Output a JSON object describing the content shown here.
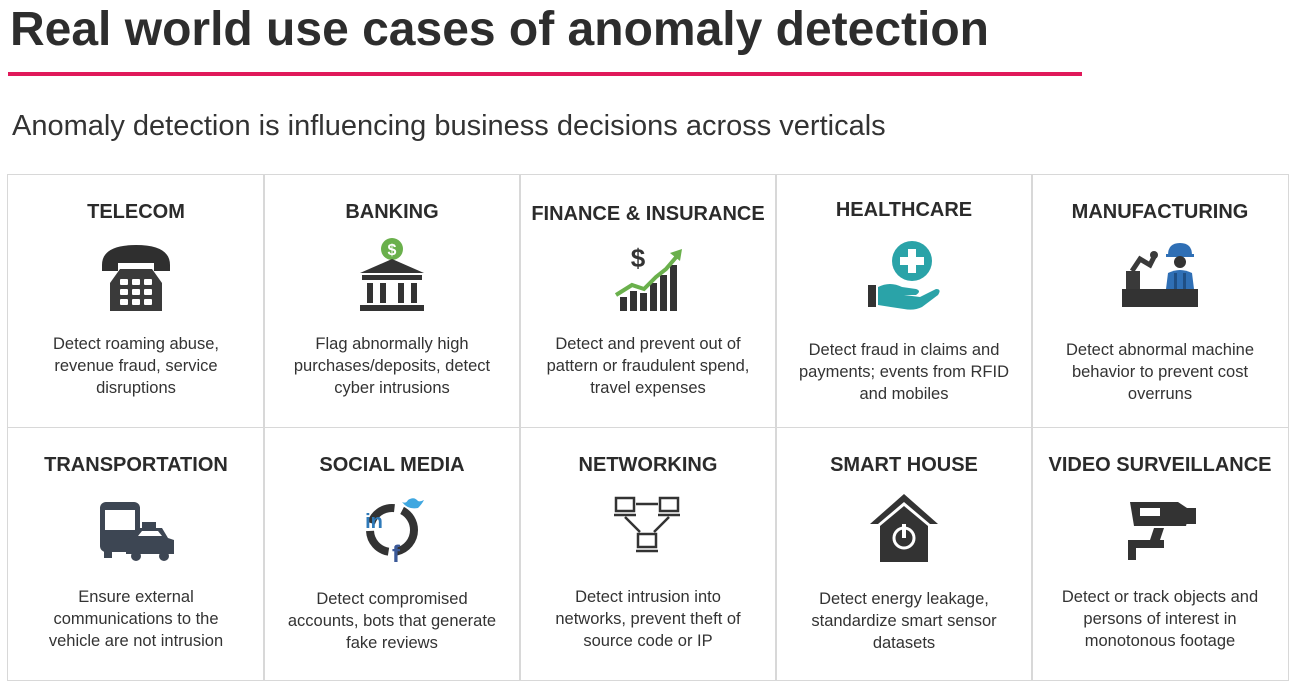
{
  "header": {
    "title": "Real world use cases of anomaly detection",
    "subtitle": "Anomaly detection is influencing business decisions across verticals",
    "accent_color": "#e0195a"
  },
  "cells": [
    {
      "title": "TELECOM",
      "icon": "telephone-icon",
      "desc": "Detect roaming abuse, revenue fraud, service disruptions"
    },
    {
      "title": "BANKING",
      "icon": "bank-icon",
      "desc": "Flag abnormally high purchases/deposits, detect cyber intrusions"
    },
    {
      "title": "FINANCE & INSURANCE",
      "icon": "finance-chart-icon",
      "desc": "Detect and prevent out of pattern or fraudulent spend, travel expenses"
    },
    {
      "title": "HEALTHCARE",
      "icon": "healthcare-hand-icon",
      "desc": "Detect fraud in claims and payments; events from RFID and mobiles"
    },
    {
      "title": "MANUFACTURING",
      "icon": "factory-worker-icon",
      "desc": "Detect abnormal machine behavior to prevent cost overruns"
    },
    {
      "title": "TRANSPORTATION",
      "icon": "vehicles-icon",
      "desc": "Ensure external communications to the vehicle are not intrusion"
    },
    {
      "title": "SOCIAL MEDIA",
      "icon": "social-media-icon",
      "desc": "Detect compromised accounts, bots that generate fake reviews"
    },
    {
      "title": "NETWORKING",
      "icon": "network-icon",
      "desc": "Detect intrusion into networks, prevent theft of source code or IP"
    },
    {
      "title": "SMART HOUSE",
      "icon": "smart-house-icon",
      "desc": "Detect energy leakage, standardize smart sensor datasets"
    },
    {
      "title": "VIDEO SURVEILLANCE",
      "icon": "cctv-camera-icon",
      "desc": "Detect or track objects and persons of interest in monotonous footage"
    }
  ]
}
